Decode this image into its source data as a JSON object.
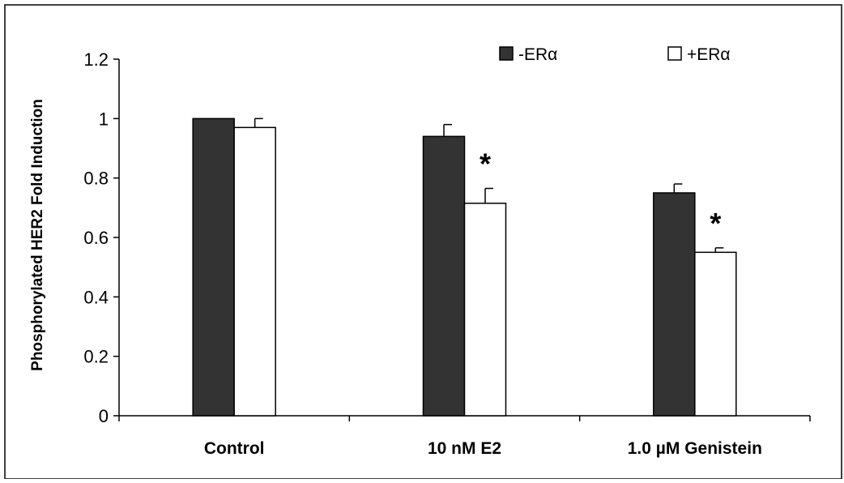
{
  "chart_data": {
    "type": "bar",
    "title": "",
    "xlabel": "",
    "ylabel": "Phosphorylated HER2 Fold Induction",
    "ylim": [
      0,
      1.2
    ],
    "yticks": [
      "0",
      "0.2",
      "0.4",
      "0.6",
      "0.8",
      "1",
      "1.2"
    ],
    "categories": [
      "Control",
      "10 nM E2",
      "1.0 µM Genistein"
    ],
    "series": [
      {
        "name": "-ERα",
        "color": "#333333",
        "values": [
          1.0,
          0.94,
          0.75
        ],
        "errors": [
          0,
          0.04,
          0.03
        ]
      },
      {
        "name": "+ERα",
        "color": "#ffffff",
        "values": [
          0.97,
          0.715,
          0.55
        ],
        "errors": [
          0.03,
          0.05,
          0.015
        ]
      }
    ],
    "annotations": [
      {
        "text": "*",
        "category": "10 nM E2",
        "series": "+ERα"
      },
      {
        "text": "*",
        "category": "1.0 µM Genistein",
        "series": "+ERα"
      }
    ],
    "legend_position": "top-right",
    "grid": false
  }
}
